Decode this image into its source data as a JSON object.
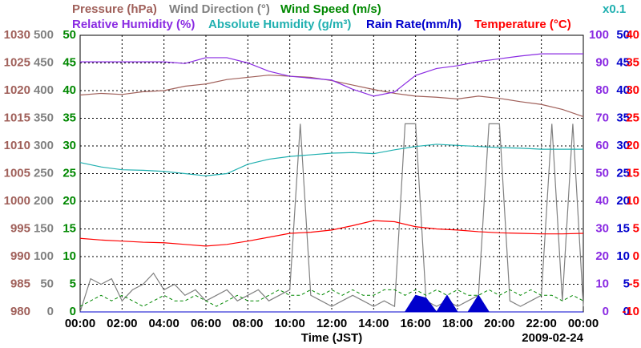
{
  "chart_data": {
    "type": "line",
    "x_label": "Time (JST)",
    "date_label": "2009-02-24",
    "annotation": "x0.1",
    "annotation_color": "#20b0b0",
    "grid": true,
    "xlim": [
      0,
      24
    ],
    "xticks": [
      {
        "value": 0,
        "label": "00:00"
      },
      {
        "value": 2,
        "label": "02:00"
      },
      {
        "value": 4,
        "label": "04:00"
      },
      {
        "value": 6,
        "label": "06:00"
      },
      {
        "value": 8,
        "label": "08:00"
      },
      {
        "value": 10,
        "label": "10:00"
      },
      {
        "value": 12,
        "label": "12:00"
      },
      {
        "value": 14,
        "label": "14:00"
      },
      {
        "value": 16,
        "label": "16:00"
      },
      {
        "value": 18,
        "label": "18:00"
      },
      {
        "value": 20,
        "label": "20:00"
      },
      {
        "value": 22,
        "label": "22:00"
      },
      {
        "value": 24,
        "label": "00:00"
      }
    ],
    "axes": [
      {
        "lim": [
          980,
          1030
        ],
        "ticks": [
          980,
          985,
          990,
          995,
          1000,
          1005,
          1010,
          1015,
          1020,
          1025,
          1030
        ],
        "color": "#a0605a"
      },
      {
        "lim": [
          0,
          500
        ],
        "ticks": [
          0,
          50,
          100,
          150,
          200,
          250,
          300,
          350,
          400,
          450,
          500
        ],
        "color": "#808080"
      },
      {
        "lim": [
          0,
          50
        ],
        "ticks": [
          0,
          5,
          10,
          15,
          20,
          25,
          30,
          35,
          40,
          45,
          50
        ],
        "color": "#008800"
      },
      {
        "lim": [
          0,
          100
        ],
        "ticks": [
          0,
          10,
          20,
          30,
          40,
          50,
          60,
          70,
          80,
          90,
          100
        ],
        "color": "#8a2be2"
      },
      {
        "lim": [
          0,
          50
        ],
        "ticks": [
          0,
          5,
          10,
          15,
          20,
          25,
          30,
          35,
          40,
          45,
          50
        ],
        "color": "#0000cc"
      },
      {
        "lim": [
          -10,
          40
        ],
        "ticks": [
          -10,
          -5,
          0,
          5,
          10,
          15,
          20,
          25,
          30,
          35,
          40
        ],
        "color": "#ff0000"
      }
    ],
    "series": [
      {
        "name": "Pressure (hPa)",
        "color": "#a0605a",
        "axis": 0,
        "style": "line",
        "x": [
          0,
          1,
          2,
          3,
          4,
          5,
          6,
          7,
          8,
          9,
          10,
          11,
          12,
          13,
          14,
          15,
          16,
          17,
          18,
          19,
          20,
          21,
          22,
          23,
          24
        ],
        "values": [
          1019.2,
          1019.5,
          1019.3,
          1019.8,
          1020.0,
          1020.8,
          1021.2,
          1022.0,
          1022.4,
          1022.8,
          1022.6,
          1022.4,
          1021.8,
          1021.0,
          1020.2,
          1019.5,
          1019.0,
          1018.8,
          1018.5,
          1019.0,
          1018.6,
          1018.0,
          1017.5,
          1016.6,
          1015.3
        ]
      },
      {
        "name": "Wind Direction (°)",
        "color": "#808080",
        "axis": 1,
        "style": "line",
        "x": [
          0,
          0.5,
          1,
          1.5,
          2,
          2.5,
          3,
          3.5,
          4,
          4.5,
          5,
          5.5,
          6,
          6.5,
          7,
          7.5,
          8,
          8.5,
          9,
          9.5,
          10,
          10.5,
          11,
          11.5,
          12,
          12.5,
          13,
          13.5,
          14,
          14.5,
          15,
          15.5,
          16,
          16.5,
          17,
          17.5,
          18,
          18.5,
          19,
          19.5,
          20,
          20.5,
          21,
          21.5,
          22,
          22.5,
          23,
          23.5,
          24
        ],
        "values": [
          0,
          60,
          50,
          60,
          20,
          40,
          50,
          70,
          40,
          50,
          30,
          40,
          20,
          30,
          40,
          20,
          30,
          40,
          20,
          30,
          40,
          340,
          30,
          20,
          10,
          20,
          30,
          20,
          10,
          20,
          10,
          340,
          340,
          20,
          10,
          20,
          10,
          20,
          30,
          340,
          340,
          20,
          10,
          20,
          30,
          340,
          20,
          340,
          10
        ]
      },
      {
        "name": "Wind Speed (m/s)",
        "color": "#008800",
        "axis": 2,
        "style": "dashed",
        "x": [
          0,
          0.5,
          1,
          1.5,
          2,
          2.5,
          3,
          3.5,
          4,
          4.5,
          5,
          5.5,
          6,
          6.5,
          7,
          7.5,
          8,
          8.5,
          9,
          9.5,
          10,
          10.5,
          11,
          11.5,
          12,
          12.5,
          13,
          13.5,
          14,
          14.5,
          15,
          15.5,
          16,
          16.5,
          17,
          17.5,
          18,
          18.5,
          19,
          19.5,
          20,
          20.5,
          21,
          21.5,
          22,
          22.5,
          23,
          23.5,
          24
        ],
        "values": [
          1,
          2,
          3,
          2,
          3,
          2,
          1,
          2,
          3,
          2,
          2,
          3,
          2,
          1,
          2,
          3,
          2,
          2,
          3,
          4,
          3,
          3,
          4,
          3,
          4,
          3,
          4,
          3,
          3,
          4,
          4,
          3,
          4,
          3,
          4,
          3,
          4,
          3,
          3,
          4,
          3,
          4,
          3,
          4,
          3,
          3,
          2,
          3,
          2
        ]
      },
      {
        "name": "Relative Humidity (%)",
        "color": "#8a2be2",
        "axis": 3,
        "style": "line",
        "x": [
          0,
          1,
          2,
          3,
          4,
          5,
          6,
          7,
          8,
          9,
          10,
          11,
          12,
          13,
          14,
          15,
          16,
          17,
          18,
          19,
          20,
          21,
          22,
          23,
          24
        ],
        "values": [
          90.4,
          90.4,
          90.4,
          90.4,
          90.4,
          89.8,
          91.9,
          91.9,
          90.0,
          87.0,
          85.2,
          84.5,
          83.8,
          80.5,
          78.0,
          79.5,
          85.5,
          88.0,
          89.0,
          90.5,
          91.5,
          92.5,
          93.3,
          93.3,
          93.3
        ]
      },
      {
        "name": "Absolute Humidity (g/m³)",
        "color": "#20b0b0",
        "axis": 4,
        "style": "line",
        "x": [
          0,
          1,
          2,
          3,
          4,
          5,
          6,
          7,
          8,
          9,
          10,
          11,
          12,
          13,
          14,
          15,
          16,
          17,
          18,
          19,
          20,
          21,
          22,
          23,
          24
        ],
        "values": [
          27.0,
          26.2,
          25.7,
          25.6,
          25.4,
          25.0,
          24.6,
          25.0,
          26.7,
          27.6,
          28.1,
          28.4,
          28.7,
          28.8,
          28.6,
          29.3,
          29.9,
          30.3,
          30.1,
          29.9,
          29.7,
          29.6,
          29.4,
          29.4,
          29.4
        ]
      },
      {
        "name": "Rain Rate(mm/h)",
        "color": "#0000cc",
        "axis": 4,
        "style": "area",
        "x": [
          0,
          0.5,
          1,
          1.5,
          2,
          2.5,
          3,
          3.5,
          4,
          4.5,
          5,
          5.5,
          6,
          6.5,
          7,
          7.5,
          8,
          8.5,
          9,
          9.5,
          10,
          10.5,
          11,
          11.5,
          12,
          12.5,
          13,
          13.5,
          14,
          14.5,
          15,
          15.5,
          16,
          16.5,
          17,
          17.5,
          18,
          18.5,
          19,
          19.5,
          20,
          20.5,
          21,
          21.5,
          22,
          22.5,
          23,
          23.5,
          24
        ],
        "values": [
          0,
          0,
          0,
          0,
          0,
          0,
          0,
          0,
          0,
          0,
          0,
          0,
          0,
          0,
          0,
          0,
          0,
          0,
          0,
          0,
          0,
          0,
          0,
          0,
          0,
          0,
          0,
          0,
          0,
          0,
          0,
          0,
          3,
          2.5,
          0,
          3,
          0,
          0,
          3,
          0,
          0,
          0,
          0,
          0,
          0,
          0,
          0,
          0,
          0
        ]
      },
      {
        "name": "Temperature (°C)",
        "color": "#ff0000",
        "axis": 5,
        "style": "line",
        "x": [
          0,
          1,
          2,
          3,
          4,
          5,
          6,
          7,
          8,
          9,
          10,
          11,
          12,
          13,
          14,
          15,
          16,
          17,
          18,
          19,
          20,
          21,
          22,
          23,
          24
        ],
        "values": [
          3.3,
          3.0,
          2.8,
          2.6,
          2.5,
          2.2,
          1.9,
          2.2,
          2.8,
          3.5,
          4.2,
          4.4,
          4.8,
          5.6,
          6.5,
          6.3,
          5.4,
          5.0,
          4.8,
          4.5,
          4.3,
          4.2,
          4.1,
          4.1,
          4.2
        ]
      }
    ]
  }
}
